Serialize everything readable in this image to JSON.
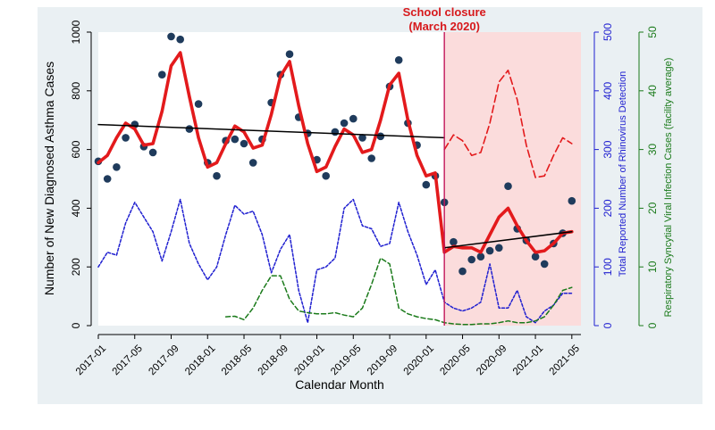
{
  "chart_data": {
    "type": "line",
    "annotation": {
      "line1": "School closure",
      "line2": "(March 2020)",
      "color": "#d7191c"
    },
    "xlabel": "Calendar Month",
    "ylabel_left": "Number of New Diagnosed Asthma Cases",
    "ylabel_right1": "Total Reported Number of Rhinovirus Detection",
    "ylabel_right2": "Respiratory Syncytial Viral Infection Cases (facility average)",
    "x_ticks": [
      "2017-01",
      "2017-05",
      "2017-09",
      "2018-01",
      "2018-05",
      "2018-09",
      "2019-01",
      "2019-05",
      "2019-09",
      "2020-01",
      "2020-05",
      "2020-09",
      "2021-01",
      "2021-05"
    ],
    "ylim_left": [
      0,
      1000
    ],
    "yticks_left": [
      0,
      200,
      400,
      600,
      800,
      1000
    ],
    "ylim_right1": [
      0,
      500
    ],
    "yticks_right1": [
      0,
      100,
      200,
      300,
      400,
      500
    ],
    "ylim_right2": [
      0,
      50
    ],
    "yticks_right2": [
      0,
      10,
      20,
      30,
      40,
      50
    ],
    "closure_month": "2020-03",
    "shaded_from": "2020-03",
    "shaded_to": "2021-06",
    "colors": {
      "asthma_points": "#1f3b5c",
      "asthma_fit": "#e31a1c",
      "trend": "#000000",
      "rhinovirus": "#1f1fd0",
      "rsv": "#1a7a1a",
      "closure_line": "#c2185b",
      "shade": "#fbdcdc",
      "plot_bg": "#ffffff",
      "outer_bg": "#eaf0f3",
      "axis_left": "#000000",
      "axis_right1": "#1f1fd0",
      "axis_right2": "#1a7a1a"
    },
    "series": [
      {
        "key": "asthma_observed",
        "style": "points",
        "axis": "left",
        "x": [
          "2017-01",
          "2017-02",
          "2017-03",
          "2017-04",
          "2017-05",
          "2017-06",
          "2017-07",
          "2017-08",
          "2017-09",
          "2017-10",
          "2017-11",
          "2017-12",
          "2018-01",
          "2018-02",
          "2018-03",
          "2018-04",
          "2018-05",
          "2018-06",
          "2018-07",
          "2018-08",
          "2018-09",
          "2018-10",
          "2018-11",
          "2018-12",
          "2019-01",
          "2019-02",
          "2019-03",
          "2019-04",
          "2019-05",
          "2019-06",
          "2019-07",
          "2019-08",
          "2019-09",
          "2019-10",
          "2019-11",
          "2019-12",
          "2020-01",
          "2020-02",
          "2020-03",
          "2020-04",
          "2020-05",
          "2020-06",
          "2020-07",
          "2020-08",
          "2020-09",
          "2020-10",
          "2020-11",
          "2020-12",
          "2021-01",
          "2021-02",
          "2021-03",
          "2021-04",
          "2021-05"
        ],
        "y": [
          560,
          500,
          540,
          640,
          685,
          610,
          590,
          855,
          985,
          975,
          670,
          755,
          555,
          510,
          630,
          635,
          620,
          555,
          635,
          760,
          855,
          925,
          710,
          655,
          565,
          510,
          660,
          690,
          705,
          640,
          570,
          645,
          815,
          905,
          690,
          615,
          480,
          510,
          420,
          285,
          185,
          225,
          235,
          255,
          265,
          475,
          330,
          290,
          235,
          210,
          280,
          315,
          425
        ]
      },
      {
        "key": "asthma_fitted",
        "style": "thick-line",
        "axis": "left",
        "x": [
          "2017-01",
          "2017-02",
          "2017-03",
          "2017-04",
          "2017-05",
          "2017-06",
          "2017-07",
          "2017-08",
          "2017-09",
          "2017-10",
          "2017-11",
          "2017-12",
          "2018-01",
          "2018-02",
          "2018-03",
          "2018-04",
          "2018-05",
          "2018-06",
          "2018-07",
          "2018-08",
          "2018-09",
          "2018-10",
          "2018-11",
          "2018-12",
          "2019-01",
          "2019-02",
          "2019-03",
          "2019-04",
          "2019-05",
          "2019-06",
          "2019-07",
          "2019-08",
          "2019-09",
          "2019-10",
          "2019-11",
          "2019-12",
          "2020-01",
          "2020-02",
          "2020-03",
          "2020-04",
          "2020-05",
          "2020-06",
          "2020-07",
          "2020-08",
          "2020-09",
          "2020-10",
          "2020-11",
          "2020-12",
          "2021-01",
          "2021-02",
          "2021-03",
          "2021-04",
          "2021-05"
        ],
        "y": [
          555,
          580,
          640,
          690,
          670,
          615,
          620,
          730,
          885,
          930,
          780,
          640,
          540,
          555,
          620,
          680,
          660,
          605,
          615,
          720,
          850,
          900,
          750,
          620,
          525,
          540,
          610,
          670,
          650,
          590,
          600,
          700,
          820,
          860,
          700,
          580,
          510,
          520,
          250,
          270,
          265,
          265,
          250,
          310,
          370,
          400,
          340,
          290,
          250,
          255,
          280,
          315,
          320
        ]
      },
      {
        "key": "asthma_trend_pre",
        "style": "thin-line",
        "axis": "left",
        "x": [
          "2017-01",
          "2020-03"
        ],
        "y": [
          685,
          640
        ]
      },
      {
        "key": "asthma_trend_post",
        "style": "thin-line",
        "axis": "left",
        "x": [
          "2020-03",
          "2021-05"
        ],
        "y": [
          265,
          320
        ]
      },
      {
        "key": "asthma_counterfactual",
        "style": "dashed-line",
        "axis": "left",
        "x": [
          "2020-03",
          "2020-04",
          "2020-05",
          "2020-06",
          "2020-07",
          "2020-08",
          "2020-09",
          "2020-10",
          "2020-11",
          "2020-12",
          "2021-01",
          "2021-02",
          "2021-03",
          "2021-04",
          "2021-05"
        ],
        "y": [
          600,
          650,
          630,
          580,
          590,
          690,
          830,
          870,
          770,
          615,
          505,
          510,
          580,
          640,
          620
        ]
      },
      {
        "key": "rhinovirus",
        "style": "short-dash",
        "axis": "right1",
        "x": [
          "2017-01",
          "2017-02",
          "2017-03",
          "2017-04",
          "2017-05",
          "2017-06",
          "2017-07",
          "2017-08",
          "2017-09",
          "2017-10",
          "2017-11",
          "2017-12",
          "2018-01",
          "2018-02",
          "2018-03",
          "2018-04",
          "2018-05",
          "2018-06",
          "2018-07",
          "2018-08",
          "2018-09",
          "2018-10",
          "2018-11",
          "2018-12",
          "2019-01",
          "2019-02",
          "2019-03",
          "2019-04",
          "2019-05",
          "2019-06",
          "2019-07",
          "2019-08",
          "2019-09",
          "2019-10",
          "2019-11",
          "2019-12",
          "2020-01",
          "2020-02",
          "2020-03",
          "2020-04",
          "2020-05",
          "2020-06",
          "2020-07",
          "2020-08",
          "2020-09",
          "2020-10",
          "2020-11",
          "2020-12",
          "2021-01",
          "2021-02",
          "2021-03",
          "2021-04",
          "2021-05"
        ],
        "y": [
          100,
          125,
          120,
          175,
          210,
          185,
          160,
          110,
          160,
          215,
          140,
          105,
          78,
          100,
          155,
          205,
          190,
          195,
          155,
          90,
          130,
          155,
          60,
          5,
          95,
          100,
          115,
          200,
          215,
          170,
          165,
          135,
          140,
          210,
          160,
          120,
          70,
          95,
          40,
          30,
          25,
          30,
          40,
          105,
          30,
          30,
          60,
          15,
          5,
          25,
          35,
          55,
          55
        ]
      },
      {
        "key": "rsv",
        "style": "long-dash",
        "axis": "right2",
        "x": [
          "2018-03",
          "2018-04",
          "2018-05",
          "2018-06",
          "2018-07",
          "2018-08",
          "2018-09",
          "2018-10",
          "2018-11",
          "2018-12",
          "2019-01",
          "2019-02",
          "2019-03",
          "2019-04",
          "2019-05",
          "2019-06",
          "2019-07",
          "2019-08",
          "2019-09",
          "2019-10",
          "2019-11",
          "2019-12",
          "2020-01",
          "2020-02",
          "2020-03",
          "2020-04",
          "2020-05",
          "2020-06",
          "2020-07",
          "2020-08",
          "2020-09",
          "2020-10",
          "2020-11",
          "2020-12",
          "2021-01",
          "2021-02",
          "2021-03",
          "2021-04",
          "2021-05"
        ],
        "y": [
          1.5,
          1.6,
          1.0,
          3.0,
          6.0,
          8.5,
          8.5,
          4.5,
          2.5,
          2.2,
          2.0,
          2.0,
          2.2,
          1.8,
          1.5,
          3.0,
          7.0,
          11.5,
          10.5,
          3.0,
          2.0,
          1.5,
          1.2,
          1.0,
          0.5,
          0.3,
          0.2,
          0.2,
          0.3,
          0.3,
          0.5,
          0.8,
          0.5,
          0.5,
          0.8,
          1.5,
          3.5,
          6.0,
          6.5
        ]
      }
    ]
  }
}
